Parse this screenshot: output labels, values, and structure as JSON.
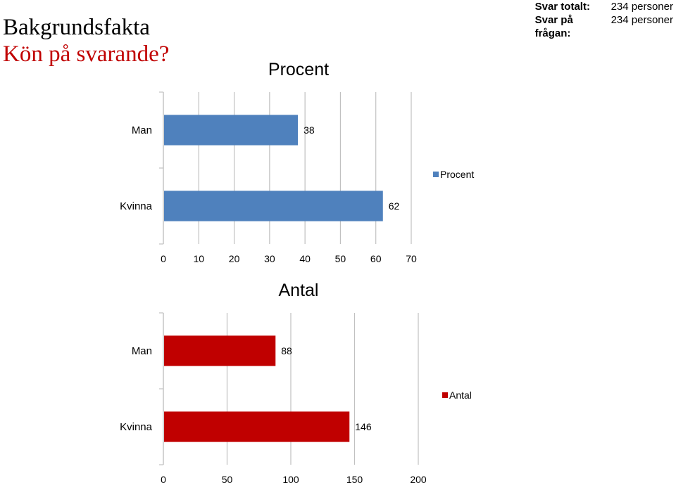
{
  "header": {
    "title": "Bakgrundsfakta",
    "subtitle": "Kön på svarande?"
  },
  "stats": {
    "total_label": "Svar totalt:",
    "total_value": "234 personer",
    "answered_label": "Svar på frågan:",
    "answered_value": "234 personer"
  },
  "colors": {
    "percent_bar": "#4f81bd",
    "count_bar": "#c00000",
    "grid": "#c0c0c0",
    "subtitle": "#c00000"
  },
  "chart_data": [
    {
      "type": "bar",
      "orientation": "horizontal",
      "title": "Procent",
      "categories": [
        "Man",
        "Kvinna"
      ],
      "series": [
        {
          "name": "Procent",
          "values": [
            38,
            62
          ]
        }
      ],
      "xlim": [
        0,
        70
      ],
      "xticks": [
        0,
        10,
        20,
        30,
        40,
        50,
        60,
        70
      ],
      "grid": true,
      "legend": "right"
    },
    {
      "type": "bar",
      "orientation": "horizontal",
      "title": "Antal",
      "categories": [
        "Man",
        "Kvinna"
      ],
      "series": [
        {
          "name": "Antal",
          "values": [
            88,
            146
          ]
        }
      ],
      "xlim": [
        0,
        200
      ],
      "xticks": [
        0,
        50,
        100,
        150,
        200
      ],
      "grid": true,
      "legend": "right"
    }
  ]
}
